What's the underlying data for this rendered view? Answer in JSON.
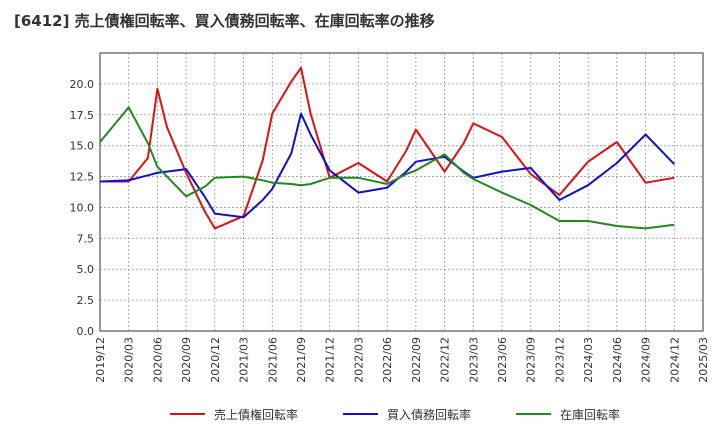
{
  "chart_data": {
    "type": "line",
    "title": "[6412]  売上債権回転率、買入債務回転率、在庫回転率の推移",
    "xlabel": "",
    "ylabel": "",
    "ylim": [
      0,
      22.5
    ],
    "yticks": [
      "0.0",
      "2.5",
      "5.0",
      "7.5",
      "10.0",
      "12.5",
      "15.0",
      "17.5",
      "20.0"
    ],
    "ytick_values": [
      0,
      2.5,
      5,
      7.5,
      10,
      12.5,
      15,
      17.5,
      20
    ],
    "xticks": [
      "2019/12",
      "2020/03",
      "2020/06",
      "2020/09",
      "2020/12",
      "2021/03",
      "2021/06",
      "2021/09",
      "2021/12",
      "2022/03",
      "2022/06",
      "2022/09",
      "2022/12",
      "2023/03",
      "2023/06",
      "2023/09",
      "2023/12",
      "2024/03",
      "2024/06",
      "2024/09",
      "2024/12",
      "2025/03"
    ],
    "grid": true,
    "legend_position": "bottom",
    "x": [
      "2019/12",
      "2020/03",
      "2020/05",
      "2020/06",
      "2020/07",
      "2020/09",
      "2020/11",
      "2020/12",
      "2021/03",
      "2021/05",
      "2021/06",
      "2021/08",
      "2021/09",
      "2021/10",
      "2021/12",
      "2022/03",
      "2022/06",
      "2022/08",
      "2022/09",
      "2022/12",
      "2023/02",
      "2023/03",
      "2023/06",
      "2023/09",
      "2023/12",
      "2024/03",
      "2024/06",
      "2024/09",
      "2024/12"
    ],
    "series": [
      {
        "name": "売上債権回転率",
        "color": "#dd1111",
        "values": [
          12.1,
          12.1,
          14.0,
          19.6,
          16.5,
          12.8,
          9.6,
          8.3,
          9.3,
          13.8,
          17.6,
          20.2,
          21.3,
          17.6,
          12.4,
          13.6,
          12.1,
          14.6,
          16.3,
          12.9,
          15.2,
          16.8,
          15.7,
          12.7,
          11.0,
          13.7,
          15.3,
          12.0,
          12.4
        ]
      },
      {
        "name": "買入債務回転率",
        "color": "#1111cc",
        "values": [
          12.1,
          12.2,
          12.6,
          12.8,
          12.9,
          13.1,
          10.8,
          9.5,
          9.2,
          10.6,
          11.5,
          14.4,
          17.6,
          15.9,
          13.0,
          11.2,
          11.6,
          12.9,
          13.7,
          14.1,
          12.9,
          12.4,
          12.9,
          13.2,
          10.6,
          11.8,
          13.6,
          15.9,
          13.5
        ]
      },
      {
        "name": "在庫回転率",
        "color": "#228822",
        "values": [
          15.3,
          18.1,
          15.2,
          13.3,
          12.5,
          10.9,
          11.7,
          12.4,
          12.5,
          12.2,
          12.0,
          11.9,
          11.8,
          11.9,
          12.4,
          12.4,
          11.9,
          12.7,
          13.0,
          14.3,
          12.8,
          12.3,
          11.2,
          10.2,
          8.9,
          8.9,
          8.5,
          8.3,
          8.6
        ]
      }
    ]
  }
}
